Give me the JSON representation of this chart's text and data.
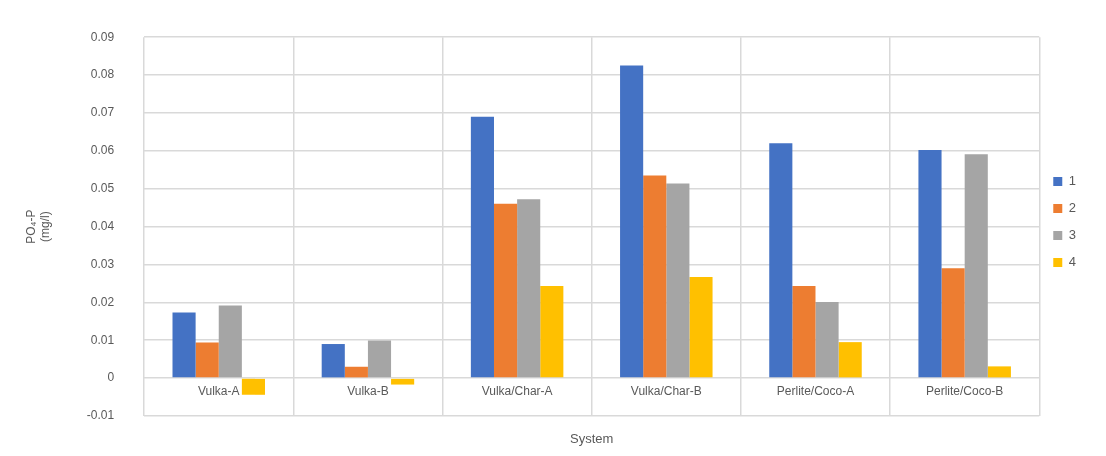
{
  "chart_data": {
    "type": "bar",
    "xlabel": "System",
    "ylabel": "PO₄-P (mg/l)",
    "categories": [
      "Vulka-A",
      "Vulka-B",
      "Vulka/Char-A",
      "Vulka/Char-B",
      "Perlite/Coco-A",
      "Perlite/Coco-B"
    ],
    "series": [
      {
        "name": "1",
        "color": "#4472c4",
        "values": [
          0.0173,
          0.009,
          0.069,
          0.0825,
          0.062,
          0.0602
        ]
      },
      {
        "name": "2",
        "color": "#ed7d31",
        "values": [
          0.0094,
          0.003,
          0.046,
          0.0535,
          0.0243,
          0.029
        ]
      },
      {
        "name": "3",
        "color": "#a5a5a5",
        "values": [
          0.0192,
          0.0099,
          0.0472,
          0.0514,
          0.0201,
          0.0591
        ]
      },
      {
        "name": "4",
        "color": "#ffc000",
        "values": [
          -0.0044,
          -0.0017,
          0.0243,
          0.0267,
          0.0095,
          0.0031
        ]
      }
    ],
    "ylim": [
      -0.01,
      0.09
    ],
    "yticks": [
      -0.01,
      0,
      0.01,
      0.02,
      0.03,
      0.04,
      0.05,
      0.06,
      0.07,
      0.08,
      0.09
    ],
    "grid": true,
    "legend": "right"
  }
}
